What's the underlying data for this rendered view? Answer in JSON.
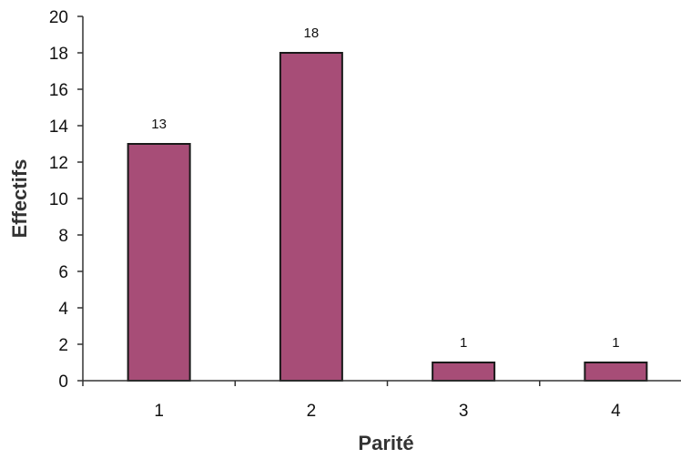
{
  "chart_data": {
    "type": "bar",
    "categories": [
      "1",
      "2",
      "3",
      "4"
    ],
    "values": [
      13,
      18,
      1,
      1
    ],
    "data_labels": [
      "13",
      "18",
      "1",
      "1"
    ],
    "xlabel": "Parité",
    "ylabel": "Effectifs",
    "ylim": [
      0,
      20
    ],
    "yticks": [
      "0",
      "2",
      "4",
      "6",
      "8",
      "10",
      "12",
      "14",
      "16",
      "18",
      "20"
    ],
    "grid": false,
    "legend": "none",
    "colors": {
      "bar_fill": "#a74d77",
      "bar_stroke": "#1a1a1a",
      "axis": "#333333"
    }
  }
}
